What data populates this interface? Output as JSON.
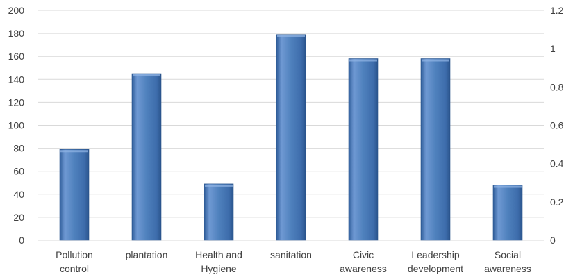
{
  "chart_data": {
    "type": "bar",
    "categories": [
      [
        "Pollution",
        "control"
      ],
      [
        "plantation"
      ],
      [
        "Health and",
        "Hygiene"
      ],
      [
        "sanitation"
      ],
      [
        "Civic",
        "awareness"
      ],
      [
        "Leadership",
        "development"
      ],
      [
        "Social",
        "awareness"
      ]
    ],
    "values": [
      79,
      145,
      49,
      179,
      158,
      158,
      48
    ],
    "ylim": [
      0,
      200
    ],
    "yticks": [
      "0",
      "20",
      "40",
      "60",
      "80",
      "100",
      "120",
      "140",
      "160",
      "180",
      "200"
    ],
    "y2lim": [
      0,
      1.2
    ],
    "y2ticks": [
      "0",
      "0.2",
      "0.4",
      "0.6",
      "0.8",
      "1",
      "1.2"
    ],
    "grid": true,
    "legend": "none",
    "colors": {
      "bar_light": "#7ea6dc",
      "bar_mid": "#4f81bd",
      "bar_dark": "#2f5d9a",
      "grid": "#d9d9d9",
      "text": "#404040"
    }
  }
}
